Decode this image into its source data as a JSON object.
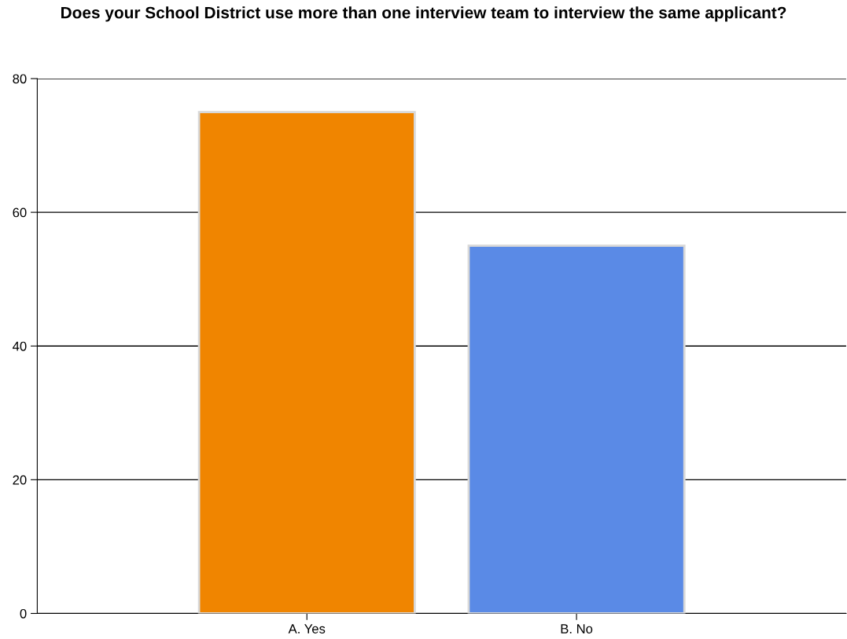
{
  "chart_data": {
    "type": "bar",
    "title": "Does your School District use more than one interview team to interview the same applicant?",
    "categories": [
      "A. Yes",
      "B. No"
    ],
    "values": [
      75,
      55
    ],
    "colors": [
      "#f08500",
      "#5a8ae6"
    ],
    "ylim": [
      0,
      80
    ],
    "yticks": [
      0,
      20,
      40,
      60,
      80
    ],
    "grid": "y",
    "legend": false
  }
}
